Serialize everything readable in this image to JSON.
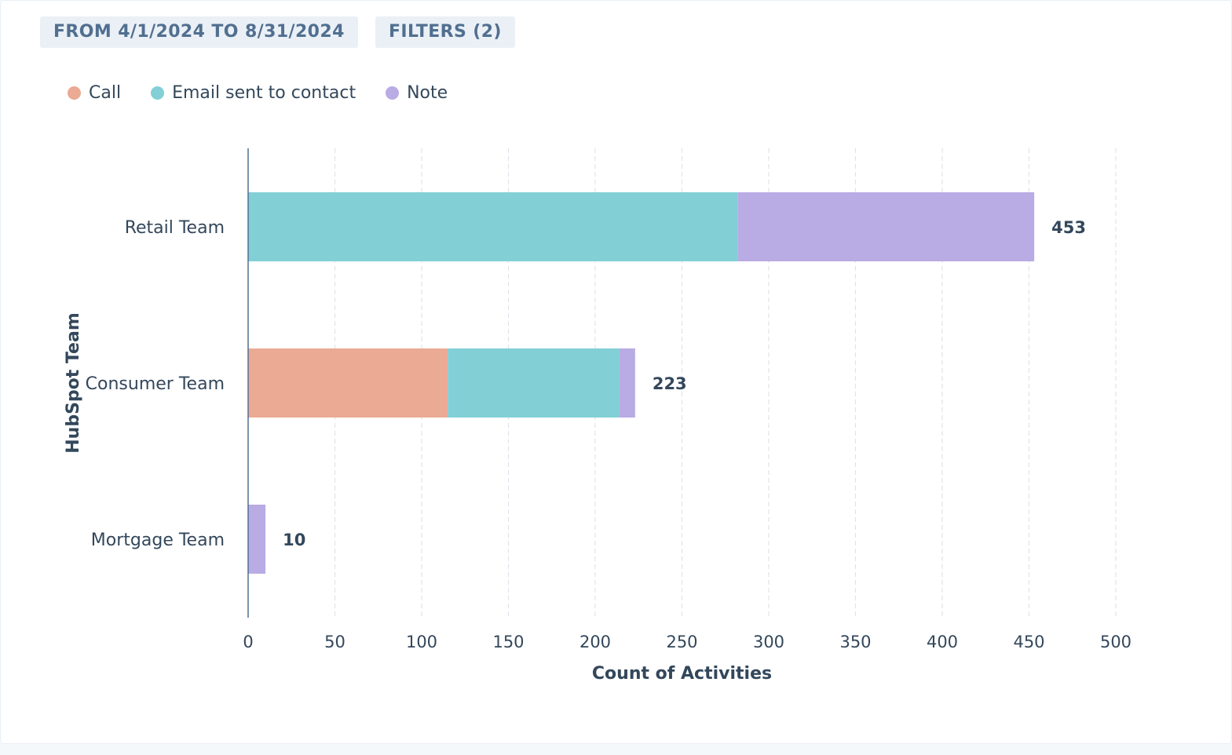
{
  "toolbar": {
    "date_range_label": "FROM 4/1/2024 TO 8/31/2024",
    "filters_label": "FILTERS (2)"
  },
  "colors": {
    "call": "#eaaa93",
    "email": "#82d0d6",
    "note": "#b9abe3",
    "axis": "#516f90",
    "grid": "#dfe3eb",
    "text": "#33475b"
  },
  "chart_data": {
    "type": "bar",
    "orientation": "horizontal",
    "stacked": true,
    "xlabel": "Count of Activities",
    "ylabel": "HubSpot Team",
    "xlim": [
      0,
      500
    ],
    "xticks": [
      0,
      50,
      100,
      150,
      200,
      250,
      300,
      350,
      400,
      450,
      500
    ],
    "grid": true,
    "legend_position": "top-left",
    "categories": [
      "Retail Team",
      "Consumer Team",
      "Mortgage Team"
    ],
    "series": [
      {
        "name": "Call",
        "values": [
          0,
          115,
          0
        ]
      },
      {
        "name": "Email sent to contact",
        "values": [
          282,
          99,
          0
        ]
      },
      {
        "name": "Note",
        "values": [
          171,
          9,
          10
        ]
      }
    ],
    "totals": [
      453,
      223,
      10
    ]
  }
}
